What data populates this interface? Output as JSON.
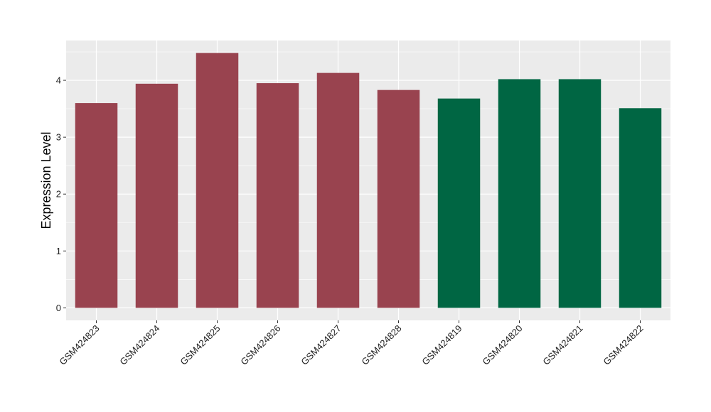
{
  "chart_data": {
    "type": "bar",
    "title": "",
    "xlabel": "",
    "ylabel": "Expression Level",
    "categories": [
      "GSM424823",
      "GSM424824",
      "GSM424825",
      "GSM424826",
      "GSM424827",
      "GSM424828",
      "GSM424819",
      "GSM424820",
      "GSM424821",
      "GSM424822"
    ],
    "values": [
      3.6,
      3.94,
      4.48,
      3.95,
      4.13,
      3.83,
      3.68,
      4.02,
      4.02,
      3.51
    ],
    "bar_colors": [
      "#99434f",
      "#99434f",
      "#99434f",
      "#99434f",
      "#99434f",
      "#99434f",
      "#006643",
      "#006643",
      "#006643",
      "#006643"
    ],
    "ylim": [
      -0.22,
      4.7
    ],
    "yticks": [
      0,
      1,
      2,
      3,
      4
    ],
    "ytick_labels": [
      "0",
      "1",
      "2",
      "3",
      "4"
    ],
    "grid": true,
    "legend": "none",
    "panel_background": "#ebebeb",
    "grid_color": "#ffffff"
  }
}
